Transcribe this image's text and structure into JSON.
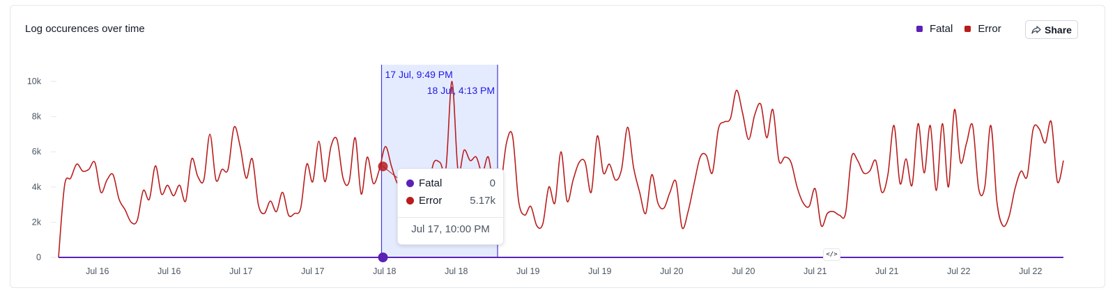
{
  "header": {
    "title": "Log occurences over time",
    "share_label": "Share"
  },
  "legend": [
    {
      "name": "Fatal",
      "color": "#5b21b6"
    },
    {
      "name": "Error",
      "color": "#b91c1c"
    }
  ],
  "selection": {
    "start_label": "17 Jul, 9:49 PM",
    "end_label": "18 Jul, 4:13 PM"
  },
  "tooltip": {
    "rows": [
      {
        "name": "Fatal",
        "value": "0",
        "color": "#5b21b6"
      },
      {
        "name": "Error",
        "value": "5.17k",
        "color": "#b91c1c"
      }
    ],
    "time": "Jul 17, 10:00 PM"
  },
  "embed_icon": "code-icon",
  "chart_data": {
    "type": "line",
    "title": "Log occurences over time",
    "ylim": [
      0,
      10000
    ],
    "y_ticks": [
      0,
      2000,
      4000,
      6000,
      8000,
      10000
    ],
    "y_tick_labels": [
      "0",
      "2k",
      "4k",
      "6k",
      "8k",
      "10k"
    ],
    "x_tick_labels": [
      "Jul 16",
      "Jul 16",
      "Jul 17",
      "Jul 17",
      "Jul 18",
      "Jul 18",
      "Jul 19",
      "Jul 19",
      "Jul 20",
      "Jul 20",
      "Jul 21",
      "Jul 21",
      "Jul 22",
      "Jul 22"
    ],
    "x_range_hours": [
      0,
      168
    ],
    "x_tick_hours": [
      6.5,
      18.5,
      30.5,
      42.5,
      54.5,
      66.5,
      78.5,
      90.5,
      102.5,
      114.5,
      126.5,
      138.5,
      150.5,
      162.5
    ],
    "series": [
      {
        "name": "Fatal",
        "color": "#5b21b6",
        "values": [
          0,
          0
        ]
      },
      {
        "name": "Error",
        "color": "#b91c1c",
        "values": [
          0,
          4100,
          4500,
          5300,
          4900,
          5000,
          5400,
          3700,
          4400,
          4700,
          3300,
          2700,
          2000,
          2100,
          3800,
          3300,
          5200,
          3600,
          4100,
          3500,
          4100,
          3200,
          5600,
          4600,
          4400,
          7000,
          4400,
          5000,
          5000,
          7400,
          6300,
          4500,
          5600,
          3000,
          2500,
          3200,
          2600,
          3700,
          2400,
          2500,
          2800,
          5300,
          4300,
          6600,
          4300,
          6300,
          6700,
          4500,
          4300,
          6800,
          3600,
          5700,
          4200,
          5000,
          6300,
          5170,
          4200,
          4300,
          3300,
          3600,
          4100,
          4000,
          5400,
          5400,
          5100,
          10000,
          4900,
          6100,
          5500,
          5700,
          4800,
          5700,
          3600,
          4000,
          6500,
          6900,
          3200,
          2400,
          2900,
          1800,
          1900,
          4000,
          3100,
          6000,
          3200,
          4400,
          5400,
          5400,
          3700,
          6900,
          4800,
          5300,
          4400,
          5000,
          7400,
          5100,
          3700,
          2500,
          4700,
          3100,
          2800,
          3700,
          4300,
          1700,
          2600,
          4200,
          5700,
          5800,
          4800,
          7300,
          7700,
          7900,
          9500,
          8200,
          6700,
          8100,
          8700,
          6800,
          8400,
          5500,
          5700,
          5400,
          4000,
          3100,
          2900,
          3900,
          1800,
          2500,
          2600,
          2400,
          2500,
          5700,
          5500,
          4800,
          4900,
          5500,
          3700,
          4700,
          7500,
          4200,
          5600,
          4100,
          7600,
          4800,
          7500,
          3800,
          7600,
          4000,
          8400,
          5400,
          6500,
          7500,
          3900,
          4000,
          7500,
          3200,
          1800,
          2300,
          3900,
          4900,
          4600,
          7300,
          7300,
          6500,
          7700,
          4300,
          5500
        ]
      }
    ]
  }
}
